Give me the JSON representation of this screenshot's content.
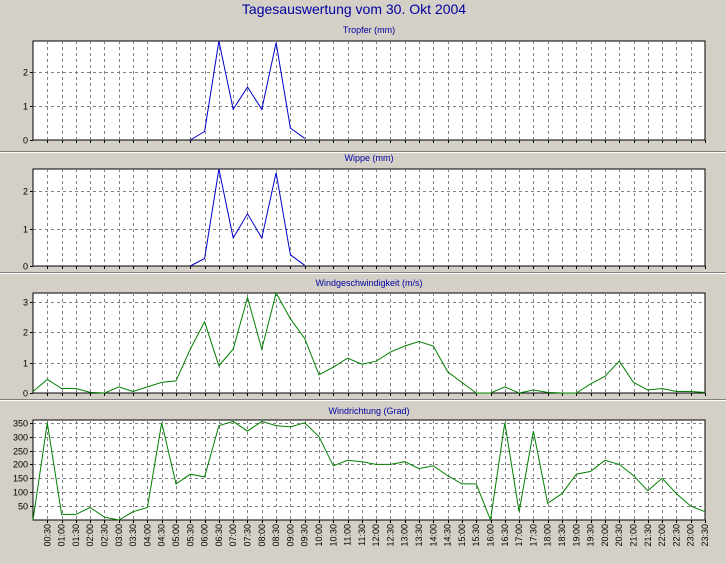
{
  "title": "Tagesauswertung vom 30. Okt 2004",
  "colors": {
    "rain": "#0000cc",
    "wind": "#008000",
    "title": "#0000a0",
    "background": "#d4d0c8"
  },
  "x_tick_labels": [
    "00:30",
    "01:00",
    "01:30",
    "02:00",
    "02:30",
    "03:00",
    "03:30",
    "04:00",
    "04:30",
    "05:00",
    "05:30",
    "06:00",
    "06:30",
    "07:00",
    "07:30",
    "08:00",
    "08:30",
    "09:00",
    "09:30",
    "10:00",
    "10:30",
    "11:00",
    "11:30",
    "12:00",
    "12:30",
    "13:00",
    "13:30",
    "14:00",
    "14:30",
    "15:00",
    "15:30",
    "16:00",
    "16:30",
    "17:00",
    "17:30",
    "18:00",
    "18:30",
    "19:00",
    "19:30",
    "20:00",
    "20:30",
    "21:00",
    "21:30",
    "22:00",
    "22:30",
    "23:00",
    "23:30"
  ],
  "chart_data": [
    {
      "type": "line",
      "title": "Tropfer (mm)",
      "ylim": [
        0,
        2.9
      ],
      "yticks": [
        0,
        1,
        2
      ],
      "grid": true,
      "series": [
        {
          "color": "#0000cc",
          "x": [
            "05:30",
            "06:00",
            "06:30",
            "07:00",
            "07:30",
            "08:00",
            "08:30",
            "09:00",
            "09:30"
          ],
          "values": [
            0,
            0.25,
            2.9,
            0.9,
            1.55,
            0.9,
            2.85,
            0.35,
            0.05
          ]
        }
      ]
    },
    {
      "type": "line",
      "title": "Wippe (mm)",
      "ylim": [
        0,
        2.6
      ],
      "yticks": [
        0,
        1,
        2
      ],
      "grid": true,
      "series": [
        {
          "color": "#0000cc",
          "x": [
            "05:30",
            "06:00",
            "06:30",
            "07:00",
            "07:30",
            "08:00",
            "08:30",
            "09:00",
            "09:30"
          ],
          "values": [
            0,
            0.2,
            2.6,
            0.75,
            1.4,
            0.75,
            2.5,
            0.3,
            0.02
          ]
        }
      ]
    },
    {
      "type": "line",
      "title": "Windgeschwindigkeit (m/s)",
      "ylim": [
        0,
        3.3
      ],
      "yticks": [
        0,
        1,
        2,
        3
      ],
      "grid": true,
      "series": [
        {
          "color": "#008000",
          "x": [
            "00:00",
            "00:30",
            "01:00",
            "01:30",
            "02:00",
            "02:30",
            "03:00",
            "03:30",
            "04:00",
            "04:30",
            "05:00",
            "05:30",
            "06:00",
            "06:30",
            "07:00",
            "07:30",
            "08:00",
            "08:30",
            "09:00",
            "09:30",
            "10:00",
            "10:30",
            "11:00",
            "11:30",
            "12:00",
            "12:30",
            "13:00",
            "13:30",
            "14:00",
            "14:30",
            "15:00",
            "15:30",
            "16:00",
            "16:30",
            "17:00",
            "17:30",
            "18:00",
            "18:30",
            "19:00",
            "19:30",
            "20:00",
            "20:30",
            "21:00",
            "21:30",
            "22:00",
            "22:30",
            "23:00",
            "23:30"
          ],
          "values": [
            0.05,
            0.45,
            0.15,
            0.15,
            0.02,
            0,
            0.2,
            0.05,
            0.2,
            0.35,
            0.4,
            1.45,
            2.35,
            0.9,
            1.45,
            3.15,
            1.45,
            3.3,
            2.45,
            1.8,
            0.6,
            0.85,
            1.15,
            0.95,
            1.05,
            1.35,
            1.55,
            1.7,
            1.55,
            0.7,
            0.35,
            0,
            0,
            0.2,
            0,
            0.1,
            0.02,
            0,
            0,
            0.3,
            0.55,
            1.05,
            0.35,
            0.1,
            0.15,
            0.05,
            0.05,
            0.02
          ]
        }
      ]
    },
    {
      "type": "line",
      "title": "Windrichtung (Grad)",
      "ylim": [
        0,
        360
      ],
      "yticks": [
        50,
        100,
        150,
        200,
        250,
        300,
        350
      ],
      "grid": true,
      "series": [
        {
          "color": "#008000",
          "x": [
            "00:00",
            "00:30",
            "01:00",
            "01:30",
            "02:00",
            "02:30",
            "03:00",
            "03:30",
            "04:00",
            "04:30",
            "05:00",
            "05:30",
            "06:00",
            "06:30",
            "07:00",
            "07:30",
            "08:00",
            "08:30",
            "09:00",
            "09:30",
            "10:00",
            "10:30",
            "11:00",
            "11:30",
            "12:00",
            "12:30",
            "13:00",
            "13:30",
            "14:00",
            "14:30",
            "15:00",
            "15:30",
            "16:00",
            "16:30",
            "17:00",
            "17:30",
            "18:00",
            "18:30",
            "19:00",
            "19:30",
            "20:00",
            "20:30",
            "21:00",
            "21:30",
            "22:00",
            "22:30",
            "23:00",
            "23:30"
          ],
          "values": [
            0,
            350,
            20,
            20,
            45,
            10,
            0,
            30,
            45,
            350,
            130,
            165,
            155,
            340,
            355,
            320,
            355,
            340,
            335,
            350,
            300,
            195,
            215,
            210,
            200,
            200,
            210,
            185,
            195,
            160,
            130,
            130,
            0,
            350,
            30,
            320,
            60,
            95,
            165,
            175,
            215,
            200,
            160,
            105,
            150,
            95,
            50,
            30
          ]
        }
      ]
    }
  ]
}
